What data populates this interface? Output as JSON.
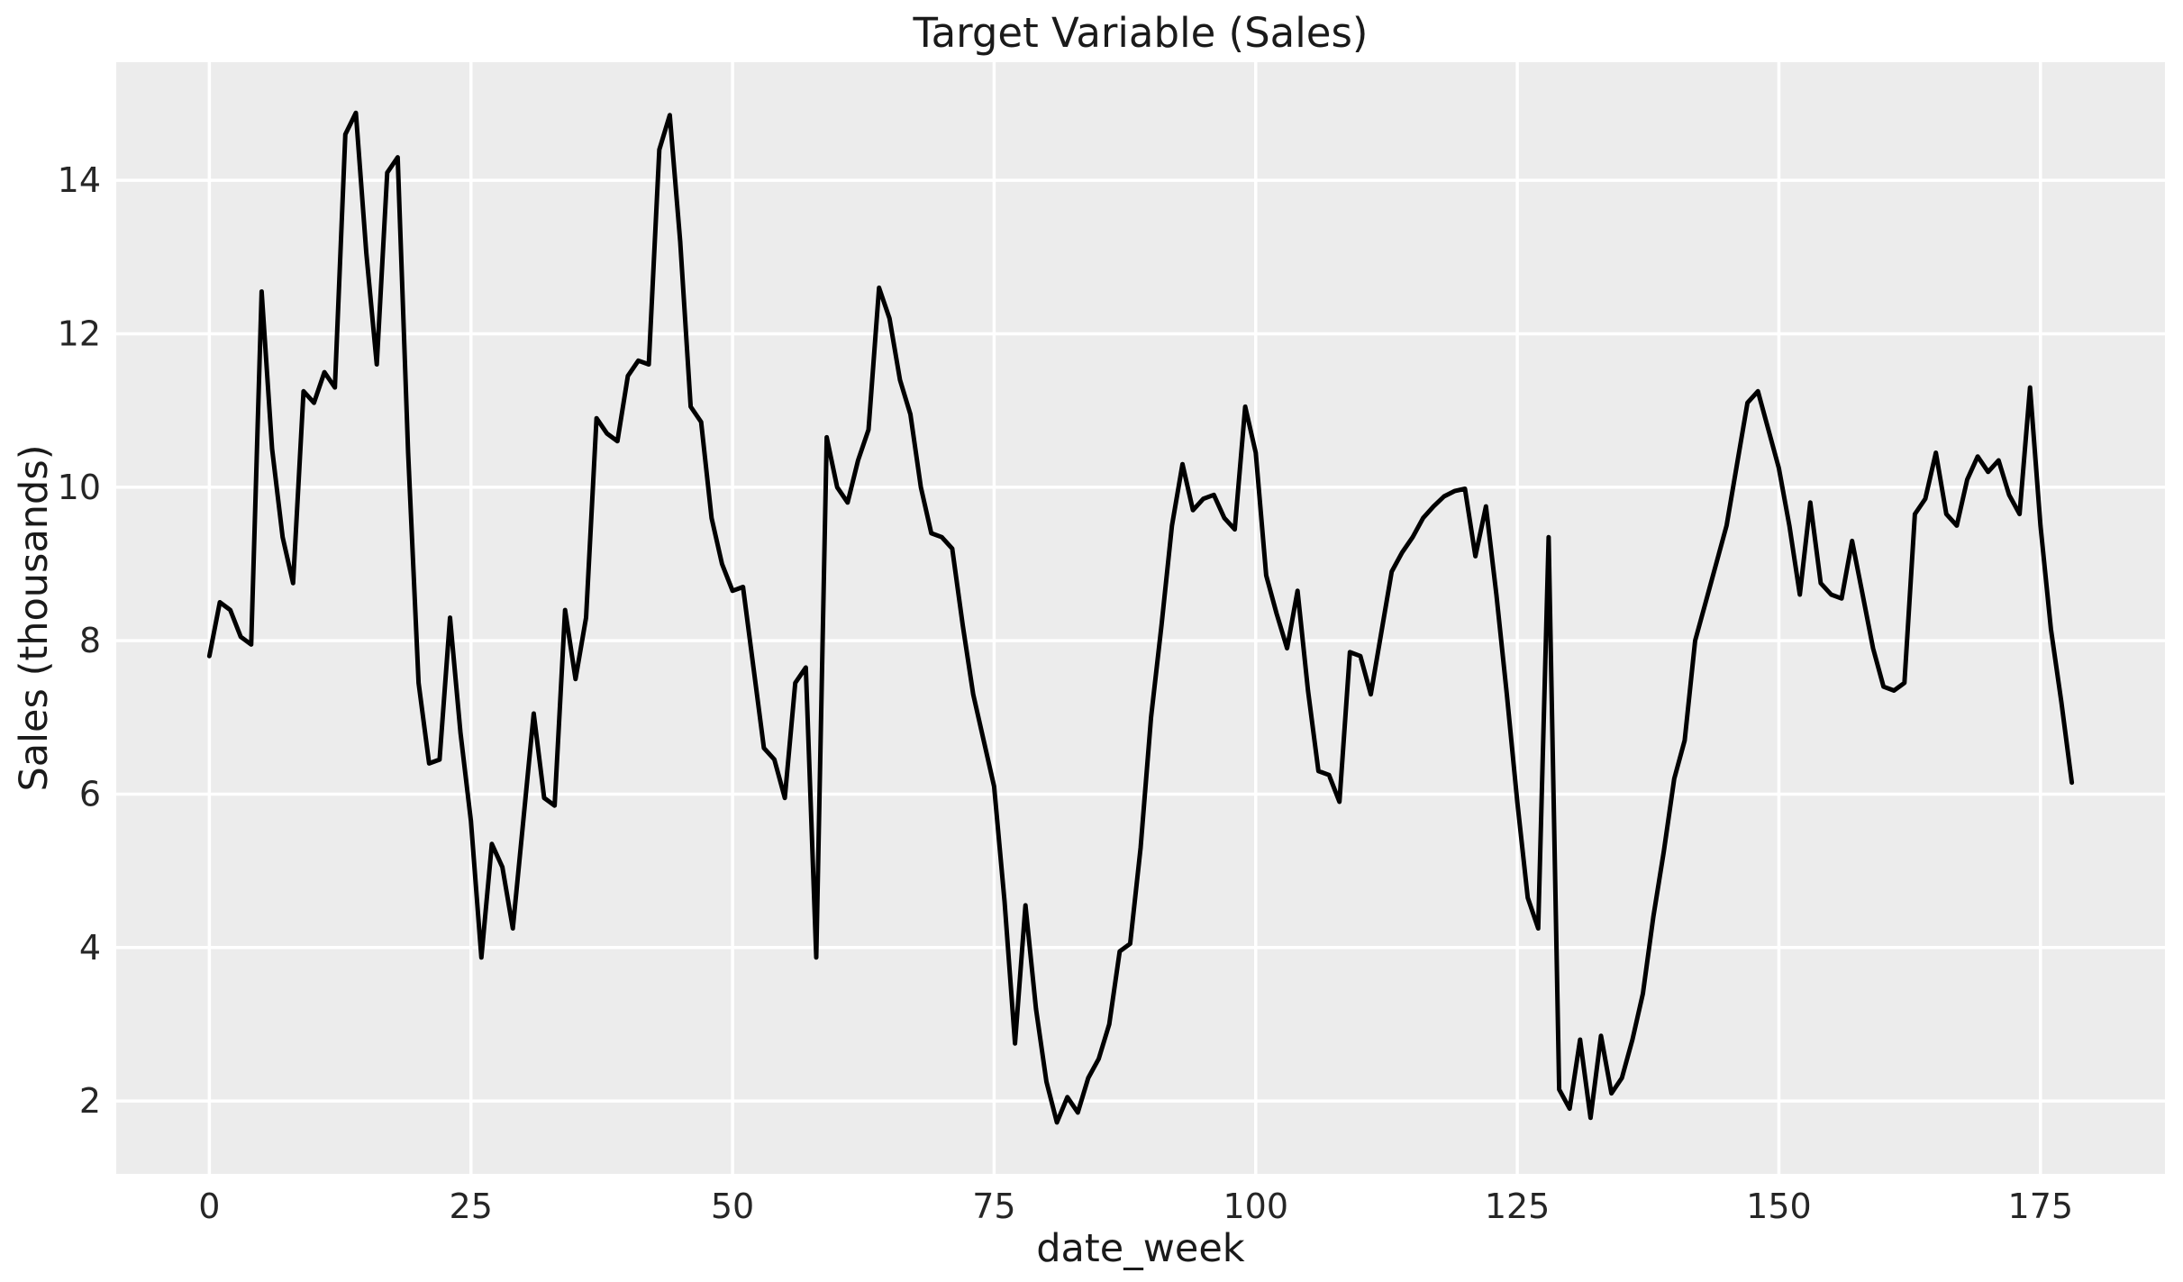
{
  "figure": {
    "background": "#ffffff",
    "text_color": "#1a1a1a",
    "tick_color": "#262626"
  },
  "chart_data": {
    "type": "line",
    "title": "Target Variable (Sales)",
    "xlabel": "date_week",
    "ylabel": "Sales (thousands)",
    "legend": "none",
    "grid": "on",
    "plot_bg": "#ececec",
    "grid_color": "#ffffff",
    "line_color": "#000000",
    "x_ticks": [
      0,
      25,
      50,
      75,
      100,
      125,
      150,
      175
    ],
    "y_ticks": [
      2,
      4,
      6,
      8,
      10,
      12,
      14
    ],
    "xlim": [
      -8.9,
      186.9
    ],
    "ylim": [
      1.05,
      15.54
    ],
    "x_weeks": {
      "start": 0,
      "step": 1,
      "count": 179
    },
    "values": [
      7.8,
      8.5,
      8.4,
      8.05,
      7.95,
      12.55,
      10.5,
      9.35,
      8.75,
      11.25,
      11.1,
      11.5,
      11.3,
      14.6,
      14.88,
      13.05,
      11.6,
      14.1,
      14.3,
      10.45,
      7.45,
      6.4,
      6.45,
      8.3,
      6.8,
      5.65,
      3.87,
      5.35,
      5.05,
      4.25,
      5.65,
      7.05,
      5.95,
      5.85,
      8.4,
      7.5,
      8.3,
      10.9,
      10.7,
      10.6,
      11.45,
      11.65,
      11.6,
      14.4,
      14.85,
      13.2,
      11.05,
      10.85,
      9.6,
      9.0,
      8.65,
      8.7,
      7.65,
      6.6,
      6.45,
      5.95,
      7.45,
      7.65,
      3.87,
      10.65,
      10.0,
      9.8,
      10.35,
      10.75,
      12.6,
      12.2,
      11.4,
      10.95,
      10.0,
      9.4,
      9.35,
      9.2,
      8.2,
      7.3,
      6.7,
      6.1,
      4.6,
      2.75,
      4.55,
      3.2,
      2.25,
      1.72,
      2.05,
      1.85,
      2.3,
      2.55,
      3.0,
      3.95,
      4.05,
      5.3,
      7.0,
      8.2,
      9.5,
      10.3,
      9.7,
      9.85,
      9.9,
      9.6,
      9.45,
      11.05,
      10.45,
      8.85,
      8.35,
      7.9,
      8.65,
      7.35,
      6.3,
      6.25,
      5.9,
      7.85,
      7.8,
      7.3,
      8.1,
      8.9,
      9.15,
      9.35,
      9.6,
      9.75,
      9.88,
      9.95,
      9.98,
      9.1,
      9.75,
      8.6,
      7.3,
      5.9,
      4.65,
      4.25,
      9.35,
      2.15,
      1.9,
      2.8,
      1.78,
      2.85,
      2.1,
      2.3,
      2.8,
      3.4,
      4.4,
      5.25,
      6.2,
      6.7,
      8.0,
      8.5,
      9.0,
      9.5,
      10.3,
      11.1,
      11.25,
      10.75,
      10.25,
      9.5,
      8.6,
      9.8,
      8.75,
      8.6,
      8.55,
      9.3,
      8.6,
      7.9,
      7.4,
      7.35,
      7.45,
      9.65,
      9.85,
      10.45,
      9.65,
      9.5,
      10.1,
      10.4,
      10.2,
      10.35,
      9.9,
      9.65,
      11.3,
      9.5,
      8.15,
      7.2,
      6.15
    ]
  }
}
